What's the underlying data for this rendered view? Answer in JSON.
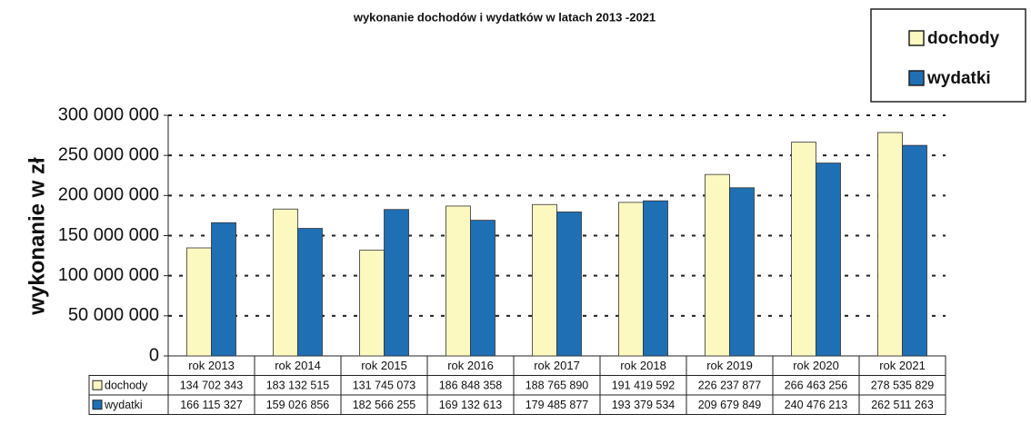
{
  "chart_data": {
    "type": "bar",
    "title": "wykonanie dochodów i wydatków w latach 2013 -2021",
    "y_label": "wykonanie w zł",
    "categories": [
      "rok 2013",
      "rok 2014",
      "rok 2015",
      "rok 2016",
      "rok 2017",
      "rok 2018",
      "rok 2019",
      "rok 2020",
      "rok 2021"
    ],
    "series": [
      {
        "name": "dochody",
        "color": "#fbf8c0",
        "values": [
          134702343,
          183132515,
          131745073,
          186848358,
          188765890,
          191419592,
          226237877,
          266463256,
          278535829
        ],
        "value_labels": [
          "134 702 343",
          "183 132 515",
          "131 745 073",
          "186 848 358",
          "188 765 890",
          "191 419 592",
          "226 237 877",
          "266 463 256",
          "278 535 829"
        ]
      },
      {
        "name": "wydatki",
        "color": "#1f6fb4",
        "values": [
          166115327,
          159026856,
          182566255,
          169132613,
          179485877,
          193379534,
          209679849,
          240476213,
          262511263
        ],
        "value_labels": [
          "166 115 327",
          "159 026 856",
          "182 566 255",
          "169 132 613",
          "179 485 877",
          "193 379 534",
          "209 679 849",
          "240 476 213",
          "262 511 263"
        ]
      }
    ],
    "ylim": [
      0,
      300000000
    ],
    "yticks": [
      0,
      {
        "value": 50000000,
        "label": "50 000 000"
      },
      {
        "value": 100000000,
        "label": "100 000 000"
      },
      {
        "value": 150000000,
        "label": "150 000 000"
      },
      {
        "value": 200000000,
        "label": "200 000 000"
      },
      {
        "value": 250000000,
        "label": "250 000 000"
      },
      {
        "value": 300000000,
        "label": "300 000 000"
      }
    ],
    "grid": true,
    "legend": "top-right"
  }
}
